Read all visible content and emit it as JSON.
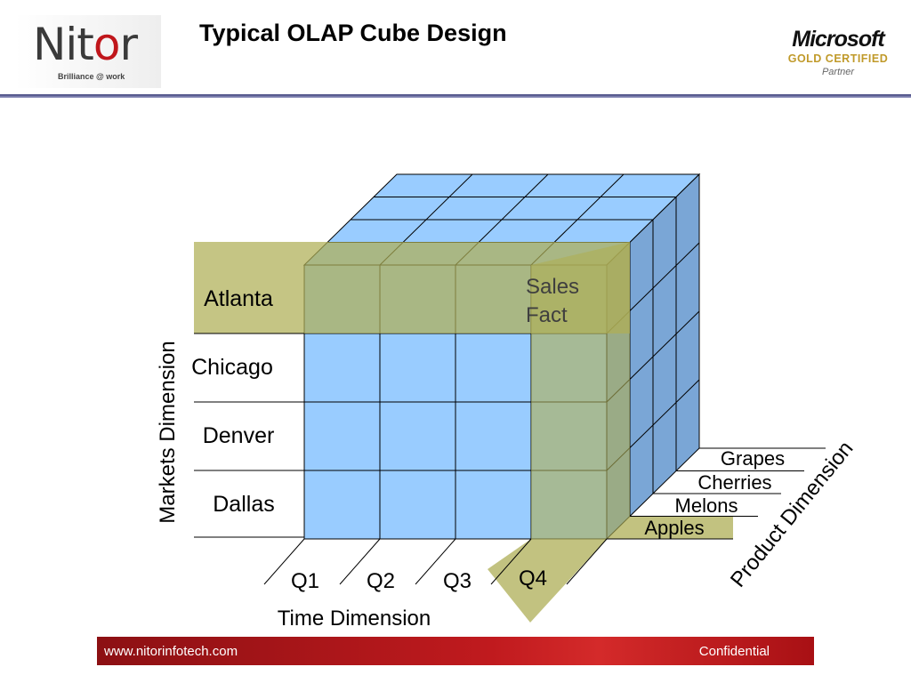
{
  "header": {
    "logo_text_a": "Nit",
    "logo_text_b": "o",
    "logo_text_c": "r",
    "logo_tagline": "Brilliance @ work",
    "title": "Typical OLAP Cube Design",
    "partner_badge": {
      "brand": "Microsoft",
      "level": "GOLD CERTIFIED",
      "type": "Partner"
    }
  },
  "diagram": {
    "markets_axis_label": "Markets Dimension",
    "markets": [
      "Atlanta",
      "Chicago",
      "Denver",
      "Dallas"
    ],
    "time_axis_label": "Time Dimension",
    "quarters": [
      "Q1",
      "Q2",
      "Q3",
      "Q4"
    ],
    "product_axis_label": "Product Dimension",
    "products": [
      "Grapes",
      "Cherries",
      "Melons",
      "Apples"
    ],
    "fact_label_line1": "Sales",
    "fact_label_line2": "Fact",
    "colors": {
      "cell": "#99ccff",
      "cell_side": "#7aa6d6",
      "highlight": "#b5b56a",
      "line": "#000000"
    }
  },
  "footer": {
    "url": "www.nitorinfotech.com",
    "confidential": "Confidential"
  }
}
